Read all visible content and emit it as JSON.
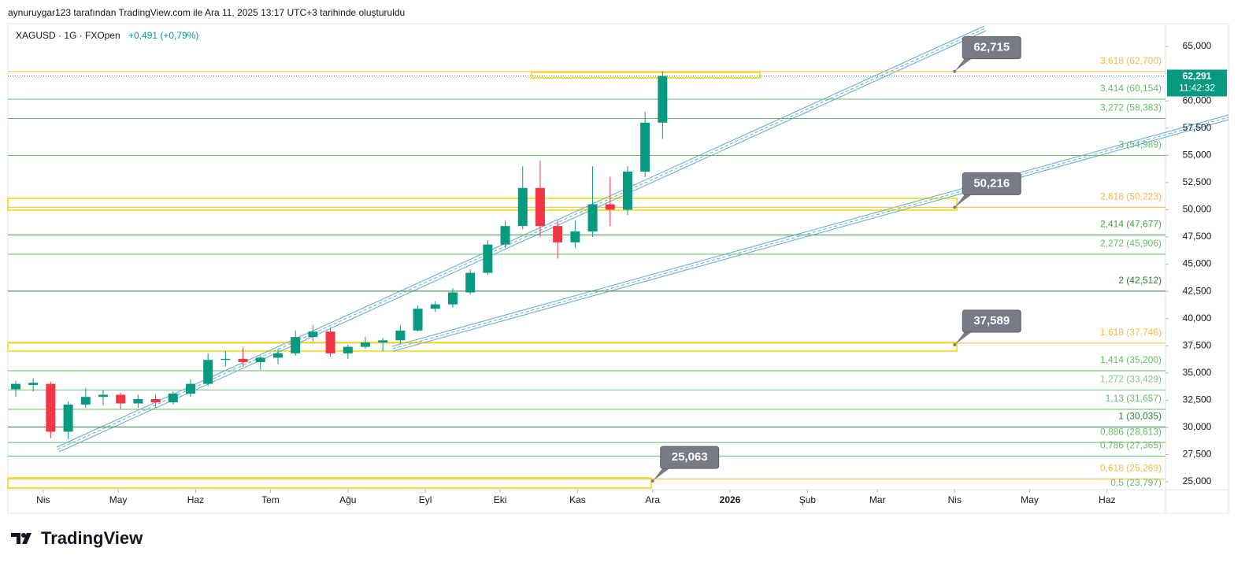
{
  "chart_data": {
    "type": "candlestick",
    "header": "aynuruygar123 tarafından TradingView.com ile Ara 11, 2025 13:17 UTC+3 tarihinde oluşturuldu",
    "symbol": "XAGUSD · 1G · FXOpen",
    "change": "+0,491 (+0,79%)",
    "logo": "TradingView",
    "categories": [
      null,
      null,
      null,
      null,
      null,
      null,
      null,
      null,
      null,
      null,
      null,
      null,
      null,
      null,
      null,
      null,
      null,
      null,
      null,
      null,
      null,
      null,
      null,
      null,
      null,
      null,
      null,
      null,
      null,
      null,
      null,
      null,
      null,
      null,
      null,
      null,
      null,
      null
    ],
    "open": [
      33.5,
      33.9,
      34.0,
      29.6,
      32.1,
      32.8,
      33.0,
      32.2,
      32.6,
      32.3,
      33.1,
      34.0,
      36.2,
      36.3,
      36.0,
      36.4,
      36.8,
      38.3,
      38.8,
      36.8,
      37.4,
      37.8,
      38.0,
      38.9,
      40.9,
      41.3,
      42.4,
      44.2,
      46.8,
      48.5,
      52.0,
      48.5,
      47.0,
      48.0,
      50.5,
      50.0,
      53.5,
      58.0
    ],
    "high": [
      34.3,
      34.5,
      34.2,
      32.4,
      33.6,
      33.4,
      33.2,
      33.0,
      33.0,
      33.3,
      34.4,
      36.8,
      37.0,
      37.3,
      36.6,
      37.2,
      38.9,
      39.4,
      39.2,
      37.6,
      38.3,
      38.2,
      39.4,
      41.2,
      41.6,
      42.8,
      44.5,
      47.2,
      49.0,
      54.0,
      54.5,
      49.0,
      49.0,
      54.0,
      53.0,
      54.0,
      59.0,
      62.7
    ],
    "low": [
      32.8,
      33.3,
      29.0,
      28.9,
      31.8,
      32.0,
      31.7,
      31.8,
      31.8,
      32.1,
      32.8,
      33.8,
      35.6,
      35.6,
      35.3,
      35.8,
      36.6,
      37.9,
      36.5,
      36.3,
      37.2,
      37.0,
      37.7,
      38.8,
      40.6,
      41.0,
      42.2,
      44.0,
      46.5,
      48.2,
      47.5,
      45.5,
      46.5,
      47.5,
      48.5,
      49.5,
      53.0,
      56.5
    ],
    "close": [
      34.0,
      34.1,
      29.6,
      32.1,
      32.8,
      33.0,
      32.2,
      32.6,
      32.3,
      33.1,
      34.0,
      36.2,
      36.3,
      36.0,
      36.4,
      36.8,
      38.3,
      38.8,
      36.8,
      37.4,
      37.8,
      38.0,
      38.9,
      40.9,
      41.3,
      42.4,
      44.2,
      46.8,
      48.5,
      52.0,
      48.5,
      47.0,
      48.0,
      50.5,
      50.0,
      53.5,
      58.0,
      62.291
    ],
    "up_color": "#089981",
    "down_color": "#f23645",
    "xlim": [
      -0.45,
      65.77
    ],
    "xticks": [
      {
        "value": 1.57,
        "label": "Nis"
      },
      {
        "value": 5.86,
        "label": "May"
      },
      {
        "value": 10.29,
        "label": "Haz"
      },
      {
        "value": 14.57,
        "label": "Tem"
      },
      {
        "value": 19,
        "label": "Ağu"
      },
      {
        "value": 23.43,
        "label": "Eyl"
      },
      {
        "value": 27.71,
        "label": "Eki"
      },
      {
        "value": 32.14,
        "label": "Kas"
      },
      {
        "value": 36.43,
        "label": "Ara"
      },
      {
        "value": 40.86,
        "label": "2026"
      },
      {
        "value": 45.29,
        "label": "Şub"
      },
      {
        "value": 49.29,
        "label": "Mar"
      },
      {
        "value": 53.71,
        "label": "Nis"
      },
      {
        "value": 58,
        "label": "May"
      },
      {
        "value": 62.43,
        "label": "Haz"
      }
    ],
    "ylim": [
      24.28,
      67.1
    ],
    "yticks": [
      {
        "value": 25,
        "label": "25,000"
      },
      {
        "value": 27.5,
        "label": "27,500"
      },
      {
        "value": 30,
        "label": "30,000"
      },
      {
        "value": 32.5,
        "label": "32,500"
      },
      {
        "value": 35,
        "label": "35,000"
      },
      {
        "value": 37.5,
        "label": "37,500"
      },
      {
        "value": 40,
        "label": "40,000"
      },
      {
        "value": 42.5,
        "label": "42,500"
      },
      {
        "value": 45,
        "label": "45,000"
      },
      {
        "value": 47.5,
        "label": "47,500"
      },
      {
        "value": 50,
        "label": "50,000"
      },
      {
        "value": 52.5,
        "label": "52,500"
      },
      {
        "value": 55,
        "label": "55,000"
      },
      {
        "value": 57.5,
        "label": "57,500"
      },
      {
        "value": 60,
        "label": "60,000"
      },
      {
        "value": 62.5,
        "label": "62,500"
      },
      {
        "value": 65,
        "label": "65,000"
      }
    ],
    "fib_levels": [
      {
        "value": 62.7,
        "label": "3,618 (62,700)",
        "color": "#f5b942"
      },
      {
        "value": 60.154,
        "label": "3,414 (60,154)",
        "color": "#66bb6a"
      },
      {
        "value": 58.383,
        "label": "3,272 (58,383)",
        "color": "#66bb6a"
      },
      {
        "value": 54.989,
        "label": "3 (54,989)",
        "color": "#66bb6a"
      },
      {
        "value": 50.223,
        "label": "2,618 (50,223)",
        "color": "#f5b942"
      },
      {
        "value": 47.677,
        "label": "2,414 (47,677)",
        "color": "#43a047"
      },
      {
        "value": 45.906,
        "label": "2,272 (45,906)",
        "color": "#66bb6a"
      },
      {
        "value": 42.512,
        "label": "2 (42,512)",
        "color": "#2e7d32"
      },
      {
        "value": 37.746,
        "label": "1,618 (37,746)",
        "color": "#f5b942"
      },
      {
        "value": 35.2,
        "label": "1,414 (35,200)",
        "color": "#66bb6a"
      },
      {
        "value": 33.429,
        "label": "1,272 (33,429)",
        "color": "#81c784"
      },
      {
        "value": 31.657,
        "label": "1,13 (31,657)",
        "color": "#66bb6a"
      },
      {
        "value": 30.035,
        "label": "1 (30,035)",
        "color": "#2e7d32"
      },
      {
        "value": 28.613,
        "label": "0,886 (28,613)",
        "color": "#66bb6a"
      },
      {
        "value": 27.365,
        "label": "0,786 (27,365)",
        "color": "#66bb6a"
      },
      {
        "value": 25.269,
        "label": "0,618 (25,269)",
        "color": "#f5b942"
      },
      {
        "value": 23.797,
        "label": "0,5 (23,797)",
        "color": "#66bb6a"
      }
    ],
    "callouts": [
      {
        "x": 53.71,
        "value": 62.715,
        "label": "62,715"
      },
      {
        "x": 53.71,
        "value": 50.216,
        "label": "50,216"
      },
      {
        "x": 53.71,
        "value": 37.589,
        "label": "37,589"
      },
      {
        "x": 36.43,
        "value": 25.063,
        "label": "25,063"
      }
    ],
    "last_price": {
      "value": 62.291,
      "label": "62,291",
      "countdown": "11:42:32",
      "color": "#089981"
    }
  }
}
